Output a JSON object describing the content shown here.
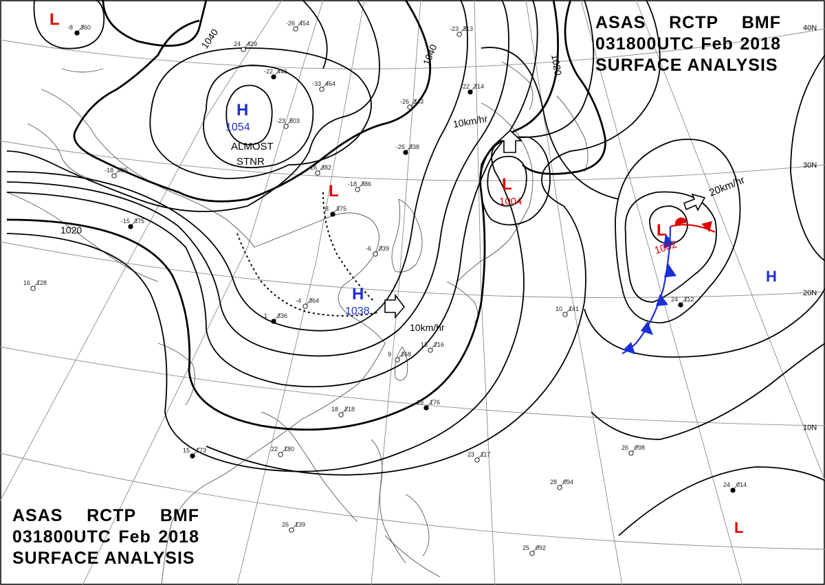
{
  "header": {
    "agency": "ASAS",
    "center": "RCTP",
    "office": "BMF",
    "datetime": "031800UTC",
    "month": "Feb",
    "year": "2018",
    "product": "SURFACE ANALYSIS"
  },
  "colors": {
    "low": "#e00000",
    "high": "#1a2fd6",
    "cold_front": "#1a2fd6",
    "warm_front": "#e00000",
    "isobar": "#000000",
    "grid": "#888888",
    "coast": "#555555"
  },
  "latitude_labels": [
    "40N",
    "30N",
    "20N",
    "10N"
  ],
  "isobar_labels": [
    "1040",
    "1040",
    "1020",
    "1020"
  ],
  "pressure_systems": [
    {
      "type": "L",
      "value": ""
    },
    {
      "type": "H",
      "value": "1054"
    },
    {
      "type": "L",
      "value": ""
    },
    {
      "type": "H",
      "value": "1038"
    },
    {
      "type": "L",
      "value": "1004"
    },
    {
      "type": "L",
      "value": "1002"
    },
    {
      "type": "H",
      "value": ""
    },
    {
      "type": "L",
      "value": ""
    }
  ],
  "annotations": {
    "stationary": [
      "ALMOST",
      "STNR"
    ],
    "motion_1": "10km/hr",
    "motion_2": "10km/hr",
    "motion_3": "20km/hr"
  },
  "station_plots": [
    {
      "t": "-8",
      "p": "360"
    },
    {
      "t": "-26",
      "p": "454"
    },
    {
      "t": "24",
      "p": "429"
    },
    {
      "t": "-22",
      "p": "446"
    },
    {
      "t": "-33",
      "p": "464"
    },
    {
      "t": "-23",
      "p": "503"
    },
    {
      "t": "-22",
      "p": "314"
    },
    {
      "t": "-26",
      "p": "343"
    },
    {
      "t": "-23",
      "p": "313"
    },
    {
      "t": "-26",
      "p": "338"
    },
    {
      "t": "-16",
      "p": "382"
    },
    {
      "t": "-18",
      "p": "386"
    },
    {
      "t": "-8",
      "p": "375"
    },
    {
      "t": "-6",
      "p": "339"
    },
    {
      "t": "-4",
      "p": "364"
    },
    {
      "t": "1",
      "p": "336"
    },
    {
      "t": "13",
      "p": "216"
    },
    {
      "t": "9",
      "p": "268"
    },
    {
      "t": "19",
      "p": "176"
    },
    {
      "t": "18",
      "p": "218"
    },
    {
      "t": "22",
      "p": "180"
    },
    {
      "t": "15",
      "p": "173"
    },
    {
      "t": "28",
      "p": "094"
    },
    {
      "t": "26",
      "p": "098"
    },
    {
      "t": "24",
      "p": "014"
    },
    {
      "t": "25",
      "p": "092"
    },
    {
      "t": "23",
      "p": "117"
    },
    {
      "t": "24",
      "p": "112"
    },
    {
      "t": "16",
      "p": "128"
    },
    {
      "t": "10",
      "p": "141"
    },
    {
      "t": "-15",
      "p": "375"
    },
    {
      "t": "-18",
      "p": "435"
    },
    {
      "t": "26",
      "p": "139"
    }
  ]
}
